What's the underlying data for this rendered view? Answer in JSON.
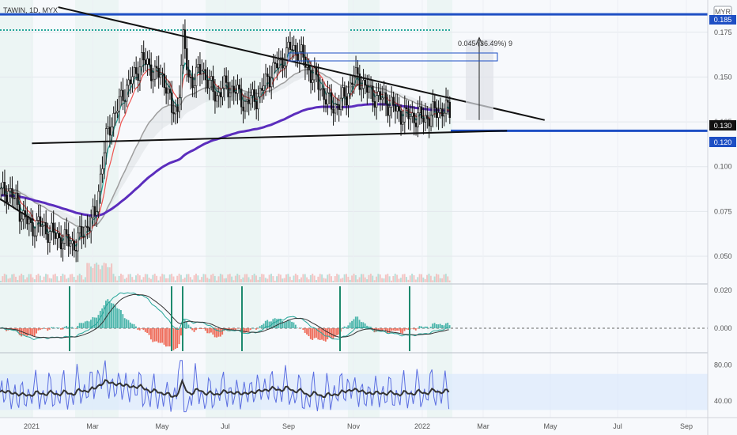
{
  "header": {
    "symbol": "TAWIN, 1D, MYX"
  },
  "currency": "MYR",
  "colors": {
    "up": "#26a69a",
    "down": "#ef5350",
    "candle": "#111111",
    "ema_fast": "#26a69a",
    "ema_mid": "#ef5350",
    "ma_gray": "#9e9e9e",
    "ma_purple": "#5b2dbd",
    "blue_line": "#1e4fc4",
    "band": "#e3f2ec",
    "rsi_band": "#dbeafc"
  },
  "price_labels": {
    "current": "0.130",
    "level": "0.120",
    "top": "0.185"
  },
  "measure_label": "0.045 (36.49%) 9",
  "chart_data": [
    {
      "type": "candlestick",
      "ylim": [
        0.035,
        0.193
      ],
      "y_ticks": [
        0.175,
        0.15,
        0.125,
        0.1,
        0.075,
        0.05
      ],
      "x_ticks": [
        "2021",
        "Mar",
        "May",
        "Jul",
        "Sep",
        "Nov",
        "2022",
        "Mar",
        "May",
        "Jul",
        "Sep"
      ],
      "close_path": [
        [
          0,
          0.085
        ],
        [
          4,
          0.087
        ],
        [
          8,
          0.08
        ],
        [
          12,
          0.072
        ],
        [
          16,
          0.066
        ],
        [
          20,
          0.068
        ],
        [
          24,
          0.065
        ],
        [
          28,
          0.062
        ],
        [
          32,
          0.06
        ],
        [
          36,
          0.058
        ],
        [
          40,
          0.057
        ],
        [
          45,
          0.066
        ],
        [
          50,
          0.072
        ],
        [
          53,
          0.095
        ],
        [
          56,
          0.115
        ],
        [
          59,
          0.126
        ],
        [
          63,
          0.135
        ],
        [
          67,
          0.145
        ],
        [
          71,
          0.15
        ],
        [
          75,
          0.16
        ],
        [
          80,
          0.154
        ],
        [
          85,
          0.15
        ],
        [
          88,
          0.147
        ],
        [
          91,
          0.13
        ],
        [
          94,
          0.132
        ],
        [
          97,
          0.17
        ],
        [
          100,
          0.15
        ],
        [
          103,
          0.148
        ],
        [
          107,
          0.156
        ],
        [
          111,
          0.145
        ],
        [
          115,
          0.14
        ],
        [
          120,
          0.145
        ],
        [
          125,
          0.142
        ],
        [
          130,
          0.135
        ],
        [
          134,
          0.138
        ],
        [
          138,
          0.14
        ],
        [
          142,
          0.15
        ],
        [
          146,
          0.155
        ],
        [
          150,
          0.16
        ],
        [
          154,
          0.166
        ],
        [
          158,
          0.165
        ],
        [
          162,
          0.158
        ],
        [
          166,
          0.15
        ],
        [
          170,
          0.145
        ],
        [
          173,
          0.138
        ],
        [
          176,
          0.134
        ],
        [
          180,
          0.135
        ],
        [
          184,
          0.14
        ],
        [
          188,
          0.15
        ],
        [
          192,
          0.148
        ],
        [
          196,
          0.141
        ],
        [
          200,
          0.139
        ],
        [
          204,
          0.137
        ],
        [
          208,
          0.134
        ],
        [
          212,
          0.13
        ],
        [
          216,
          0.128
        ],
        [
          220,
          0.128
        ],
        [
          224,
          0.127
        ],
        [
          228,
          0.128
        ],
        [
          232,
          0.131
        ],
        [
          236,
          0.132
        ],
        [
          240,
          0.13
        ]
      ],
      "resistance_line": [
        [
          31,
          0.189
        ],
        [
          290,
          0.126
        ]
      ],
      "support_line": [
        [
          17,
          0.113
        ],
        [
          270,
          0.12
        ]
      ],
      "horizontal_level": 0.12,
      "horizontal_top": 0.185,
      "early_downtrend": [
        [
          0,
          0.082
        ],
        [
          18,
          0.07
        ]
      ]
    },
    {
      "type": "histogram",
      "name_ticks": [
        "0.020",
        "0.000"
      ],
      "ylim": [
        -0.012,
        0.022
      ],
      "zero": 0.0
    },
    {
      "type": "line",
      "ylim": [
        25,
        90
      ],
      "y_ticks": [
        80.0,
        40.0
      ]
    }
  ]
}
